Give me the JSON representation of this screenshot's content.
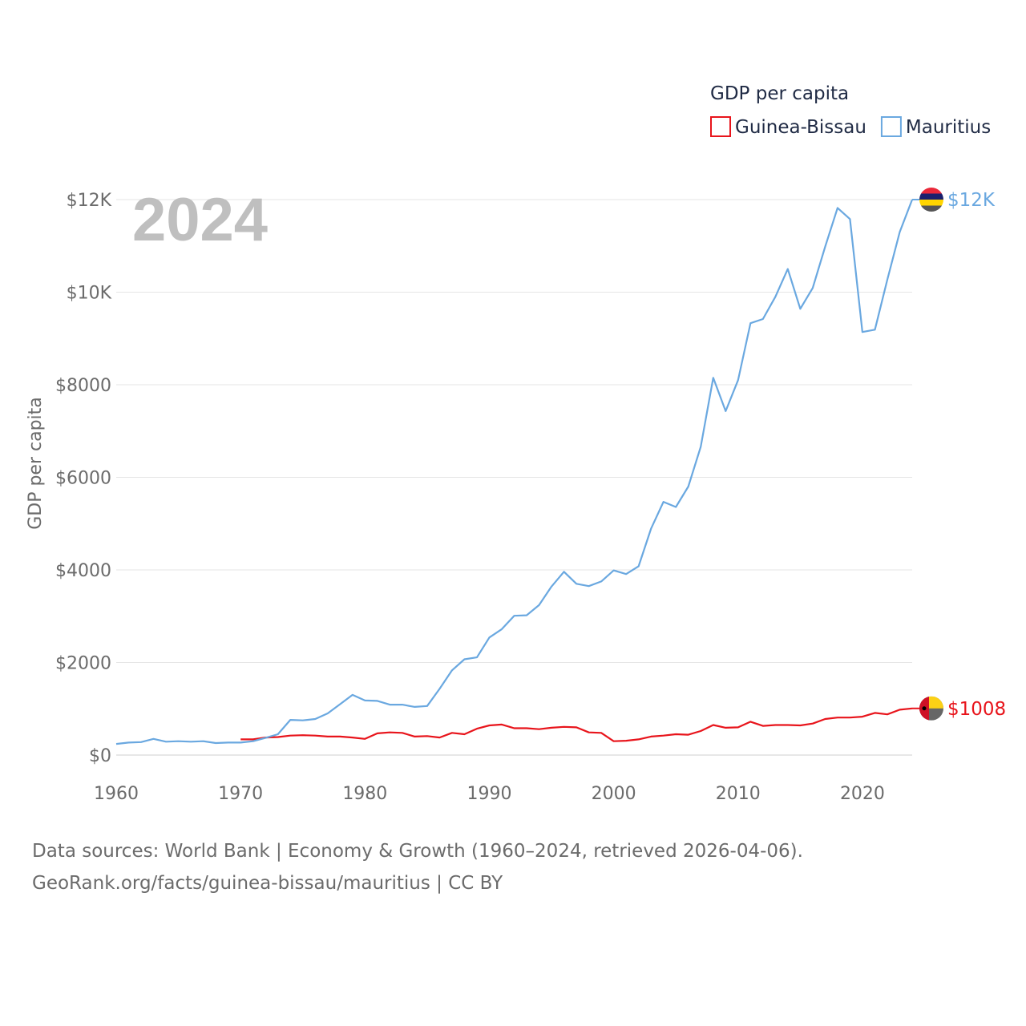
{
  "chart_data": {
    "type": "line",
    "year_label": "2024",
    "ylabel": "GDP per capita",
    "xlabel": "",
    "legend": {
      "title": "GDP per capita",
      "position": "top-right"
    },
    "xlim": [
      1960,
      2024
    ],
    "ylim": [
      0,
      12000
    ],
    "x_ticks": [
      1960,
      1970,
      1980,
      1990,
      2000,
      2010,
      2020
    ],
    "x_tick_labels": [
      "1960",
      "1970",
      "1980",
      "1990",
      "2000",
      "2010",
      "2020"
    ],
    "y_ticks": [
      0,
      2000,
      4000,
      6000,
      8000,
      10000,
      12000
    ],
    "y_tick_labels": [
      "$0",
      "$2000",
      "$4000",
      "$6000",
      "$8000",
      "$10K",
      "$12K"
    ],
    "grid": true,
    "series": [
      {
        "name": "Guinea-Bissau",
        "color": "#e8141b",
        "end_label": "$1008",
        "flag": "guinea-bissau-flag",
        "x": [
          1970,
          1971,
          1972,
          1973,
          1974,
          1975,
          1976,
          1977,
          1978,
          1979,
          1980,
          1981,
          1982,
          1983,
          1984,
          1985,
          1986,
          1987,
          1988,
          1989,
          1990,
          1991,
          1992,
          1993,
          1994,
          1995,
          1996,
          1997,
          1998,
          1999,
          2000,
          2001,
          2002,
          2003,
          2004,
          2005,
          2006,
          2007,
          2008,
          2009,
          2010,
          2011,
          2012,
          2013,
          2014,
          2015,
          2016,
          2017,
          2018,
          2019,
          2020,
          2021,
          2022,
          2023,
          2024
        ],
        "values": [
          340,
          340,
          380,
          390,
          420,
          430,
          420,
          400,
          400,
          380,
          350,
          470,
          490,
          480,
          400,
          410,
          380,
          480,
          450,
          570,
          640,
          660,
          580,
          580,
          560,
          590,
          610,
          600,
          490,
          480,
          300,
          310,
          340,
          400,
          420,
          450,
          440,
          520,
          650,
          590,
          600,
          720,
          630,
          650,
          650,
          640,
          680,
          780,
          810,
          810,
          830,
          910,
          880,
          980,
          1008
        ]
      },
      {
        "name": "Mauritius",
        "color": "#6aa8e0",
        "end_label": "$12K",
        "flag": "mauritius-flag",
        "x": [
          1960,
          1961,
          1962,
          1963,
          1964,
          1965,
          1966,
          1967,
          1968,
          1969,
          1970,
          1971,
          1972,
          1973,
          1974,
          1975,
          1976,
          1977,
          1978,
          1979,
          1980,
          1981,
          1982,
          1983,
          1984,
          1985,
          1986,
          1987,
          1988,
          1989,
          1990,
          1991,
          1992,
          1993,
          1994,
          1995,
          1996,
          1997,
          1998,
          1999,
          2000,
          2001,
          2002,
          2003,
          2004,
          2005,
          2006,
          2007,
          2008,
          2009,
          2010,
          2011,
          2012,
          2013,
          2014,
          2015,
          2016,
          2017,
          2018,
          2019,
          2020,
          2021,
          2022,
          2023,
          2024
        ],
        "values": [
          240,
          270,
          280,
          350,
          290,
          300,
          290,
          300,
          260,
          270,
          270,
          300,
          370,
          450,
          760,
          750,
          780,
          900,
          1100,
          1300,
          1180,
          1170,
          1090,
          1090,
          1040,
          1060,
          1430,
          1830,
          2070,
          2110,
          2540,
          2720,
          3010,
          3020,
          3240,
          3640,
          3960,
          3700,
          3650,
          3750,
          3990,
          3910,
          4080,
          4890,
          5470,
          5360,
          5800,
          6660,
          8150,
          7430,
          8100,
          9330,
          9420,
          9900,
          10500,
          9640,
          10090,
          10980,
          11820,
          11580,
          9140,
          9190,
          10270,
          11300,
          12000
        ]
      }
    ]
  },
  "footer": {
    "line1": "Data sources: World Bank | Economy & Growth (1960–2024, retrieved 2026-04-06).",
    "line2": "GeoRank.org/facts/guinea-bissau/mauritius | CC BY"
  }
}
